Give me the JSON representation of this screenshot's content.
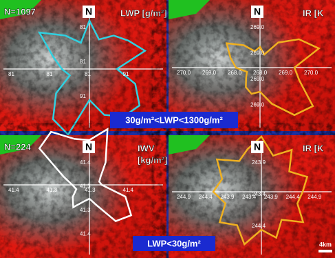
{
  "panels": [
    {
      "n": "N=1097",
      "north": "N",
      "variable": [
        "LWP [g/m²]"
      ],
      "ticks_h": [
        "81",
        "81",
        "81",
        "91"
      ],
      "ticks_v": [
        "81",
        "81",
        "91"
      ]
    },
    {
      "north": "N",
      "variable": [
        "IR [K"
      ],
      "ticks_h": [
        "270.0",
        "269.0",
        "268.0",
        "268.0",
        "269.0",
        "270.0"
      ],
      "ticks_v": [
        "269.0",
        "269.0",
        "269.0",
        "269.0"
      ]
    },
    {
      "n": "N=224",
      "north": "N",
      "variable": [
        "IWV",
        "[kg/m²]"
      ],
      "ticks_h": [
        "41.4",
        "41.3",
        "41.3",
        "41.4"
      ],
      "ticks_v": [
        "41.4",
        "41.3",
        "41.3",
        "41.4"
      ]
    },
    {
      "north": "N",
      "variable": [
        "IR [K"
      ],
      "ticks_h": [
        "244.9",
        "244.4",
        "243.9",
        "243.4",
        "243.9",
        "244.4",
        "244.9"
      ],
      "ticks_v": [
        "243.9",
        "243.4",
        "244.4"
      ]
    }
  ],
  "conditions": [
    "30g/m²<LWP<1300g/m²",
    "LWP<30g/m²"
  ],
  "scale": "4km"
}
